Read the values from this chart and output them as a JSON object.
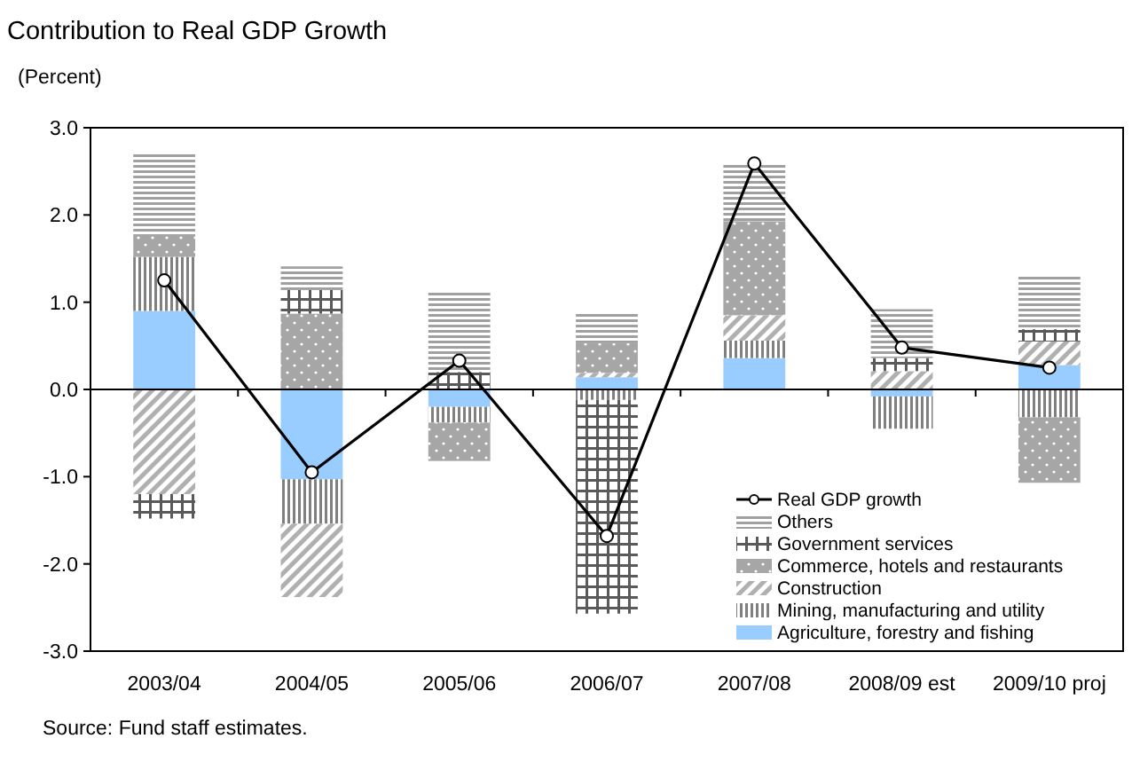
{
  "chart_data": {
    "type": "bar",
    "stacked": true,
    "title": "Contribution to Real GDP Growth",
    "subtitle": "(Percent)",
    "categories": [
      "2003/04",
      "2004/05",
      "2005/06",
      "2006/07",
      "2007/08",
      "2008/09 est",
      "2009/10 proj"
    ],
    "series": [
      {
        "name": "Agriculture, forestry and fishing",
        "color": "#99ccff",
        "values": [
          0.9,
          -1.03,
          -0.2,
          0.14,
          0.36,
          -0.08,
          0.28
        ]
      },
      {
        "name": "Mining, manufacturing and utility",
        "color": "#808080",
        "values": [
          0.62,
          -0.51,
          -0.18,
          -0.12,
          0.2,
          -0.37,
          -0.32
        ]
      },
      {
        "name": "Construction",
        "color": "#b0b0b0",
        "values": [
          -1.2,
          -0.84,
          null,
          0.05,
          0.29,
          0.21,
          0.27
        ]
      },
      {
        "name": "Commerce, hotels and restaurants",
        "color": "#a6a6a6",
        "values": [
          0.25,
          0.87,
          -0.44,
          0.34,
          1.08,
          null,
          -0.75
        ]
      },
      {
        "name": "Government services",
        "color": "#595959",
        "values": [
          -0.28,
          0.27,
          0.2,
          -2.45,
          null,
          0.15,
          0.14
        ]
      },
      {
        "name": "Others",
        "color": "#a0a0a0",
        "values": [
          0.95,
          0.27,
          0.93,
          0.35,
          0.65,
          0.56,
          0.63
        ]
      },
      {
        "name": "Real GDP growth",
        "type": "line",
        "color": "#000000",
        "marker": "circle",
        "values": [
          1.25,
          -0.95,
          0.33,
          -1.68,
          2.59,
          0.48,
          0.25
        ]
      }
    ],
    "ylim": [
      -3,
      3
    ],
    "yticks": [
      {
        "value": -3,
        "label": "-3.0"
      },
      {
        "value": -2,
        "label": "-2.0"
      },
      {
        "value": -1,
        "label": "-1.0"
      },
      {
        "value": 0,
        "label": "0.0"
      },
      {
        "value": 1,
        "label": "1.0"
      },
      {
        "value": 2,
        "label": "2.0"
      },
      {
        "value": 3,
        "label": "3.0"
      }
    ],
    "legend": "bottom right",
    "annotations": [
      "Source: Fund staff estimates."
    ]
  }
}
